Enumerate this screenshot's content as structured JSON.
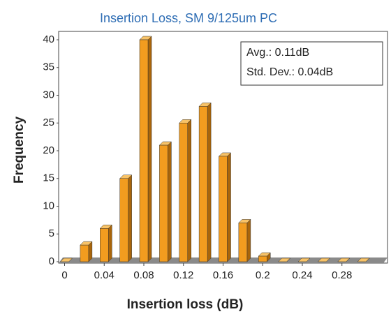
{
  "chart_data": {
    "type": "bar",
    "title": "Insertion Loss, SM 9/125um PC",
    "x_label": "Insertion loss (dB)",
    "y_label": "Frequency",
    "annotations": [
      "Avg.: 0.11dB",
      "Std. Dev.: 0.04dB"
    ],
    "x": [
      0,
      0.02,
      0.04,
      0.06,
      0.08,
      0.1,
      0.12,
      0.14,
      0.16,
      0.18,
      0.2,
      0.22,
      0.24,
      0.26,
      0.28,
      0.3
    ],
    "values": [
      0,
      3,
      6,
      15,
      40,
      21,
      25,
      28,
      19,
      7,
      1,
      0,
      0,
      0,
      0,
      0
    ],
    "color": "#f29c1f",
    "xlim": [
      -0.006,
      0.326
    ],
    "xticks": [
      0,
      0.04,
      0.08,
      0.12,
      0.16,
      0.2,
      0.24,
      0.28
    ],
    "ylim": [
      0,
      40
    ],
    "yticks": [
      0,
      5,
      10,
      15,
      20,
      25,
      30,
      35,
      40
    ],
    "grid": false
  }
}
